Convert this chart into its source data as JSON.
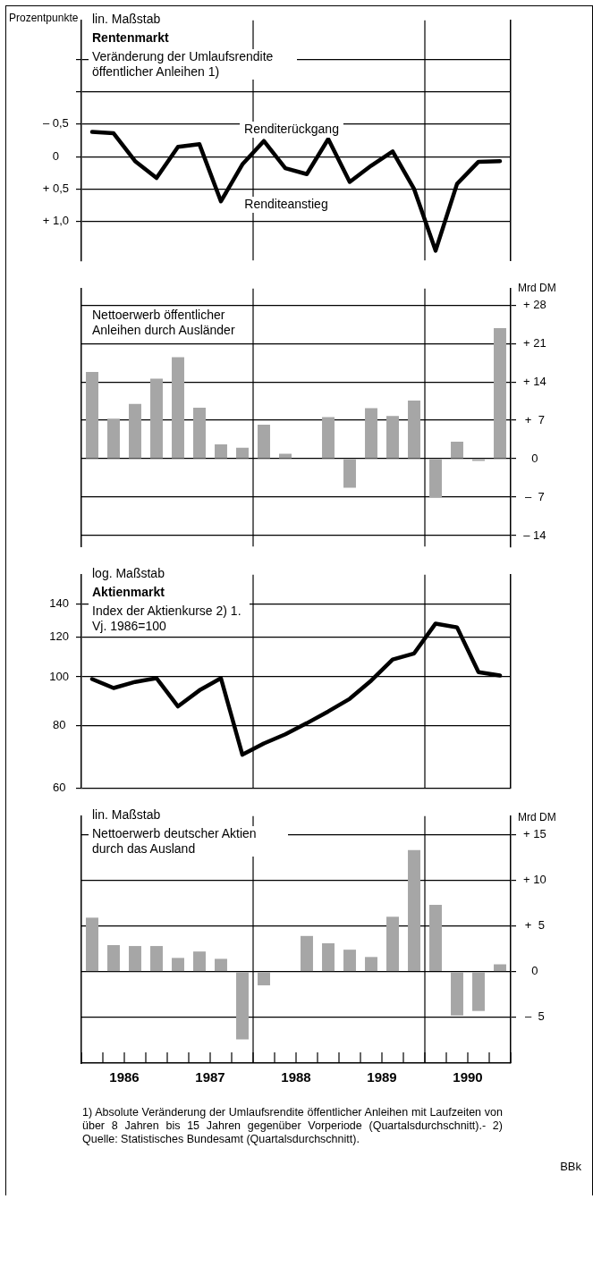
{
  "chart_data": [
    {
      "type": "line",
      "title": "Rentenmarkt",
      "subtitle": "Veränderung der Umlaufsrendite öffentlicher Anleihen 1)",
      "ylabel": "Prozentpunkte",
      "annotations": [
        "lin. Maßstab",
        "Renditerückgang",
        "Renditeanstieg"
      ],
      "x": [
        1986.125,
        1986.375,
        1986.625,
        1986.875,
        1987.125,
        1987.375,
        1987.625,
        1987.875,
        1988.125,
        1988.375,
        1988.625,
        1988.875,
        1989.125,
        1989.375,
        1989.625,
        1989.875,
        1990.125,
        1990.375,
        1990.625,
        1990.875
      ],
      "series": [
        {
          "color": "#000000",
          "values": [
            -0.38,
            -0.36,
            0.07,
            0.33,
            -0.15,
            -0.19,
            0.69,
            0.12,
            -0.24,
            0.18,
            0.27,
            -0.27,
            0.39,
            0.14,
            -0.08,
            0.5,
            1.45,
            0.42,
            0.08,
            0.07
          ]
        }
      ],
      "xlim": [
        1986,
        1991
      ],
      "ylim": [
        1.6,
        -2.1
      ],
      "yticks": [
        {
          "value": -1.5,
          "label": null
        },
        {
          "value": -1.0,
          "label": null
        },
        {
          "value": -0.5,
          "label": "– 0,5"
        },
        0,
        {
          "value": 0.5,
          "label": "+ 0,5"
        },
        {
          "value": 1.0,
          "label": "+ 1,0"
        }
      ],
      "grid": "y",
      "tick_labels": "y",
      "marker": "none",
      "legend": false,
      "ref_lines": [
        {
          "axis": "x",
          "value": 1988
        },
        {
          "axis": "x",
          "value": 1990
        }
      ]
    },
    {
      "type": "bar",
      "subtitle": "Nettoerwerb öffentlicher Anleihen durch Ausländer",
      "y2label": "Mrd DM",
      "x": [
        1986.125,
        1986.375,
        1986.625,
        1986.875,
        1987.125,
        1987.375,
        1987.625,
        1987.875,
        1988.125,
        1988.375,
        1988.625,
        1988.875,
        1989.125,
        1989.375,
        1989.625,
        1989.875,
        1990.125,
        1990.375,
        1990.625,
        1990.875
      ],
      "series": [
        {
          "color": "#a6a6a6",
          "axis": "y2",
          "values": [
            15.8,
            7.3,
            10.0,
            14.6,
            18.5,
            9.3,
            2.6,
            2.0,
            6.2,
            0.9,
            0,
            7.6,
            -5.3,
            9.2,
            7.8,
            10.6,
            -7.1,
            3.1,
            -0.4,
            23.8
          ]
        }
      ],
      "xlim": [
        1986,
        1991
      ],
      "y2lim": [
        -16,
        31
      ],
      "y2ticks": [
        {
          "value": 28,
          "label": "+ 28"
        },
        {
          "value": 21,
          "label": "+ 21"
        },
        {
          "value": 14,
          "label": "+ 14"
        },
        {
          "value": 7,
          "label": "+  7"
        },
        0,
        {
          "value": -7,
          "label": "–  7"
        },
        {
          "value": -14,
          "label": "– 14"
        }
      ],
      "grid": "y",
      "tick_labels": "y",
      "legend": false,
      "ref_lines": [
        {
          "axis": "x",
          "value": 1988
        },
        {
          "axis": "x",
          "value": 1990
        }
      ]
    },
    {
      "type": "line",
      "title": "Aktienmarkt",
      "subtitle": "Index der Aktienkurse 2) 1. Vj. 1986=100",
      "annotations": [
        "log. Maßstab"
      ],
      "x": [
        1986.125,
        1986.375,
        1986.625,
        1986.875,
        1987.125,
        1987.375,
        1987.625,
        1987.875,
        1988.125,
        1988.375,
        1988.625,
        1988.875,
        1989.125,
        1989.375,
        1989.625,
        1989.875,
        1990.125,
        1990.375,
        1990.625,
        1990.875
      ],
      "series": [
        {
          "color": "#000000",
          "values": [
            99,
            95,
            97.7,
            99.4,
            87.3,
            94,
            99.4,
            69.9,
            73.6,
            76.8,
            80.8,
            85.3,
            90.4,
            98.3,
            108.3,
            111.4,
            127.8,
            125.6,
            102.2,
            100.6
          ]
        }
      ],
      "xlim": [
        1986,
        1991
      ],
      "ylim": [
        60,
        160
      ],
      "yticks": [
        60,
        80,
        100,
        120,
        140
      ],
      "log": true,
      "grid": "y",
      "tick_labels": "y",
      "marker": "none",
      "legend": false,
      "ref_lines": [
        {
          "axis": "x",
          "value": 1988
        },
        {
          "axis": "x",
          "value": 1990
        }
      ]
    },
    {
      "type": "bar",
      "subtitle": "Nettoerwerb deutscher Aktien durch das Ausland",
      "y2label": "Mrd DM",
      "annotations": [
        "lin. Maßstab",
        "1) Absolute Veränderung der Umlaufsrendite öffentlicher Anleihen mit Laufzeiten von über 8 Jahren bis 15 Jahren gegenüber Vorperiode (Quartalsdurchschnitt).- 2) Quelle: Statistisches Bundesamt (Quartalsdurchschnitt).",
        "BBk"
      ],
      "x": [
        1986.125,
        1986.375,
        1986.625,
        1986.875,
        1987.125,
        1987.375,
        1987.625,
        1987.875,
        1988.125,
        1988.375,
        1988.625,
        1988.875,
        1989.125,
        1989.375,
        1989.625,
        1989.875,
        1990.125,
        1990.375,
        1990.625,
        1990.875
      ],
      "series": [
        {
          "color": "#a6a6a6",
          "axis": "y2",
          "values": [
            5.9,
            2.9,
            2.8,
            2.8,
            1.5,
            2.2,
            1.4,
            -7.4,
            -1.5,
            0,
            3.9,
            3.1,
            2.4,
            1.6,
            6.0,
            13.3,
            7.3,
            -4.8,
            -4.3,
            0.8
          ]
        }
      ],
      "xlim": [
        1986,
        1991
      ],
      "y2lim": [
        -10,
        17
      ],
      "y2ticks": [
        {
          "value": 15,
          "label": "+ 15"
        },
        {
          "value": 10,
          "label": "+ 10"
        },
        {
          "value": 5,
          "label": "+  5"
        },
        0,
        {
          "value": -5,
          "label": "–  5"
        }
      ],
      "xticks": [
        {
          "value": 1986,
          "label": null
        },
        {
          "value": 1986.25,
          "label": null
        },
        {
          "value": 1986.5,
          "label": "1986"
        },
        {
          "value": 1986.75,
          "label": null
        },
        {
          "value": 1987,
          "label": null
        },
        {
          "value": 1987.25,
          "label": null
        },
        {
          "value": 1987.5,
          "label": "1987"
        },
        {
          "value": 1987.75,
          "label": null
        },
        {
          "value": 1988,
          "label": null
        },
        {
          "value": 1988.25,
          "label": null
        },
        {
          "value": 1988.5,
          "label": "1988"
        },
        {
          "value": 1988.75,
          "label": null
        },
        {
          "value": 1989,
          "label": null
        },
        {
          "value": 1989.25,
          "label": null
        },
        {
          "value": 1989.5,
          "label": "1989"
        },
        {
          "value": 1989.75,
          "label": null
        },
        {
          "value": 1990,
          "label": null
        },
        {
          "value": 1990.25,
          "label": null
        },
        {
          "value": 1990.5,
          "label": "1990"
        },
        {
          "value": 1990.75,
          "label": null
        },
        {
          "value": 1991,
          "label": null
        }
      ],
      "grid": "y",
      "legend": false,
      "ref_lines": [
        {
          "axis": "x",
          "value": 1988
        },
        {
          "axis": "x",
          "value": 1990
        }
      ]
    }
  ]
}
